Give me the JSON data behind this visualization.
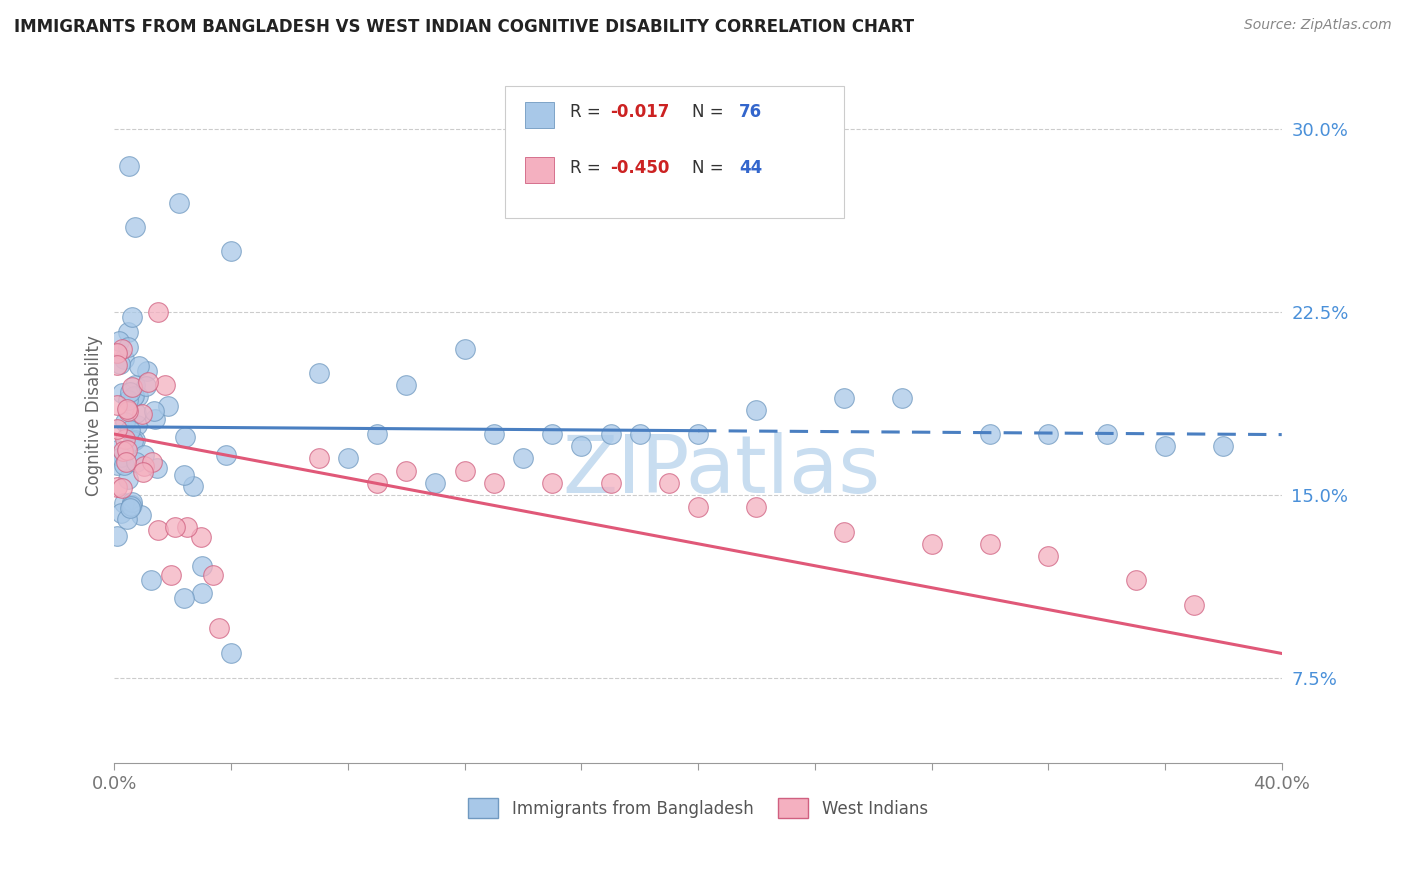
{
  "title": "IMMIGRANTS FROM BANGLADESH VS WEST INDIAN COGNITIVE DISABILITY CORRELATION CHART",
  "source": "Source: ZipAtlas.com",
  "ylabel": "Cognitive Disability",
  "yticks": [
    "7.5%",
    "15.0%",
    "22.5%",
    "30.0%"
  ],
  "ytick_vals": [
    0.075,
    0.15,
    0.225,
    0.3
  ],
  "xlim": [
    0.0,
    0.4
  ],
  "ylim": [
    0.04,
    0.325
  ],
  "series1_name": "Immigrants from Bangladesh",
  "series2_name": "West Indians",
  "series1_color": "#a8c8e8",
  "series1_edge": "#7099c0",
  "series2_color": "#f4b0c0",
  "series2_edge": "#d06080",
  "trend1_color": "#4a7fc1",
  "trend2_color": "#e05878",
  "legend1_color": "#a8c8e8",
  "legend2_color": "#f4b0c0",
  "watermark_color": "#c8ddf0",
  "background_color": "#ffffff",
  "grid_color": "#cccccc",
  "title_color": "#222222",
  "ytick_color": "#4a90d9",
  "xtick_color": "#777777"
}
